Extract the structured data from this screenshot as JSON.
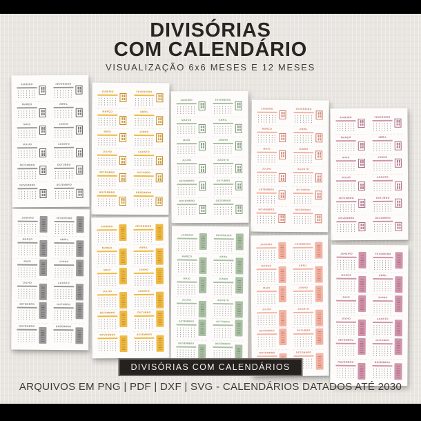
{
  "header": {
    "title_line1": "DIVISÓRIAS",
    "title_line2": "COM CALENDÁRIO",
    "subtitle": "VISUALIZAÇÃO 6x6 MESES E 12 MESES"
  },
  "banner": {
    "label": "DIVISÓRIAS COM CALENDÁRIOS"
  },
  "footer": {
    "text": "ARQUIVOS EM PNG | PDF | DXF | SVG - CALENDÁRIOS DATADOS ATÉ 2030"
  },
  "months": [
    "JANEIRO",
    "FEVEREIRO",
    "MARÇO",
    "ABRIL",
    "MAIO",
    "JUNHO",
    "JULHO",
    "AGOSTO",
    "SETEMBRO",
    "OUTUBRO",
    "NOVEMBRO",
    "DEZEMBRO"
  ],
  "palettes": [
    {
      "name": "gray",
      "accent": "#9a9a9a",
      "accent_dark": "#5f5f5f",
      "label_color": "#787878"
    },
    {
      "name": "yellow",
      "accent": "#efba44",
      "accent_dark": "#c28a1e",
      "label_color": "#c28a1e"
    },
    {
      "name": "sage",
      "accent": "#abbfa5",
      "accent_dark": "#78936f",
      "label_color": "#78936f"
    },
    {
      "name": "salmon",
      "accent": "#f3b4a5",
      "accent_dark": "#cc7a66",
      "label_color": "#cc7a66"
    },
    {
      "name": "rose",
      "accent": "#d095ab",
      "accent_dark": "#a86580",
      "label_color": "#a86580"
    }
  ],
  "rows": [
    {
      "variant": "12-meses",
      "tab_style": "outline"
    },
    {
      "variant": "6x6-meses",
      "tab_style": "solid"
    }
  ],
  "colors": {
    "backdrop": "#e9e6e1",
    "page_bg": "#fdfcfb",
    "ink": "#282422",
    "banner_bg": "#25211e",
    "banner_border": "#6e6862",
    "banner_text": "#f4f2ef",
    "footer_text": "#3c3834",
    "bar": "#000000"
  }
}
